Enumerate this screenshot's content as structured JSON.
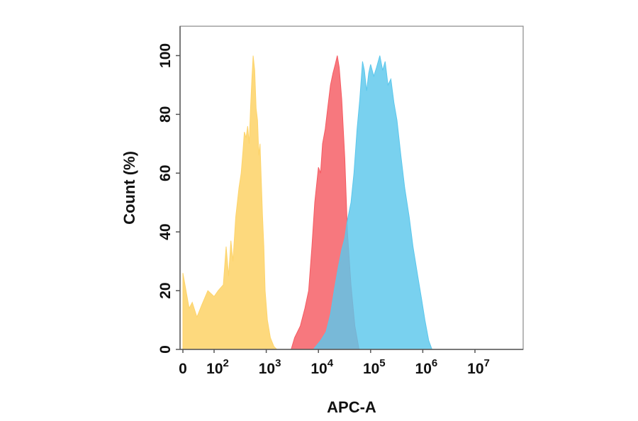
{
  "chart_data": {
    "type": "area",
    "xlabel": "APC-A",
    "ylabel": "Count  (%)",
    "x_scale": "biexponential",
    "x_tick_labels": [
      {
        "value": 0,
        "base": "0",
        "exp": ""
      },
      {
        "value": 100,
        "base": "10",
        "exp": "2"
      },
      {
        "value": 1000,
        "base": "10",
        "exp": "3"
      },
      {
        "value": 10000,
        "base": "10",
        "exp": "4"
      },
      {
        "value": 100000,
        "base": "10",
        "exp": "5"
      },
      {
        "value": 1000000,
        "base": "10",
        "exp": "6"
      },
      {
        "value": 10000000,
        "base": "10",
        "exp": "7"
      }
    ],
    "y_ticks": [
      0,
      20,
      40,
      60,
      80,
      100
    ],
    "ylim": [
      0,
      110
    ],
    "grid": false,
    "legend": "none",
    "series": [
      {
        "color": "#FDD46B",
        "opacity": 0.88,
        "points": [
          [
            0,
            26
          ],
          [
            10,
            20
          ],
          [
            20,
            14
          ],
          [
            30,
            16
          ],
          [
            45,
            11
          ],
          [
            60,
            15
          ],
          [
            80,
            20
          ],
          [
            100,
            18
          ],
          [
            120,
            20
          ],
          [
            150,
            22
          ],
          [
            170,
            35
          ],
          [
            190,
            25
          ],
          [
            210,
            37
          ],
          [
            230,
            30
          ],
          [
            260,
            45
          ],
          [
            300,
            55
          ],
          [
            330,
            60
          ],
          [
            360,
            68
          ],
          [
            380,
            74
          ],
          [
            410,
            72
          ],
          [
            440,
            76
          ],
          [
            470,
            70
          ],
          [
            500,
            82
          ],
          [
            530,
            92
          ],
          [
            560,
            100
          ],
          [
            600,
            95
          ],
          [
            640,
            82
          ],
          [
            680,
            78
          ],
          [
            720,
            66
          ],
          [
            760,
            70
          ],
          [
            800,
            58
          ],
          [
            850,
            45
          ],
          [
            900,
            35
          ],
          [
            950,
            20
          ],
          [
            1050,
            10
          ],
          [
            1200,
            4
          ],
          [
            1400,
            1
          ],
          [
            1600,
            0
          ]
        ]
      },
      {
        "color": "#F55A61",
        "opacity": 0.82,
        "points": [
          [
            3000,
            0
          ],
          [
            3500,
            4
          ],
          [
            4500,
            8
          ],
          [
            5500,
            14
          ],
          [
            6500,
            20
          ],
          [
            7500,
            35
          ],
          [
            8500,
            50
          ],
          [
            10000,
            62
          ],
          [
            11000,
            60
          ],
          [
            12000,
            70
          ],
          [
            13500,
            75
          ],
          [
            15000,
            82
          ],
          [
            17000,
            90
          ],
          [
            19000,
            94
          ],
          [
            21000,
            97
          ],
          [
            23000,
            100
          ],
          [
            25000,
            96
          ],
          [
            28000,
            85
          ],
          [
            32000,
            65
          ],
          [
            36000,
            40
          ],
          [
            42000,
            22
          ],
          [
            50000,
            8
          ],
          [
            60000,
            0
          ]
        ]
      },
      {
        "color": "#5BC7EC",
        "opacity": 0.82,
        "points": [
          [
            8000,
            0
          ],
          [
            11000,
            3
          ],
          [
            14000,
            6
          ],
          [
            17000,
            12
          ],
          [
            20000,
            20
          ],
          [
            24000,
            28
          ],
          [
            28000,
            34
          ],
          [
            32000,
            38
          ],
          [
            36000,
            44
          ],
          [
            42000,
            50
          ],
          [
            48000,
            60
          ],
          [
            55000,
            75
          ],
          [
            62000,
            85
          ],
          [
            70000,
            98
          ],
          [
            76000,
            95
          ],
          [
            84000,
            88
          ],
          [
            92000,
            94
          ],
          [
            100000,
            97
          ],
          [
            115000,
            93
          ],
          [
            130000,
            96
          ],
          [
            150000,
            100
          ],
          [
            170000,
            95
          ],
          [
            190000,
            98
          ],
          [
            215000,
            90
          ],
          [
            245000,
            92
          ],
          [
            280000,
            84
          ],
          [
            320000,
            78
          ],
          [
            380000,
            66
          ],
          [
            450000,
            55
          ],
          [
            550000,
            45
          ],
          [
            650000,
            35
          ],
          [
            800000,
            25
          ],
          [
            950000,
            17
          ],
          [
            1100000,
            10
          ],
          [
            1300000,
            3
          ],
          [
            1500000,
            0
          ],
          [
            4000000,
            0
          ]
        ]
      }
    ]
  }
}
